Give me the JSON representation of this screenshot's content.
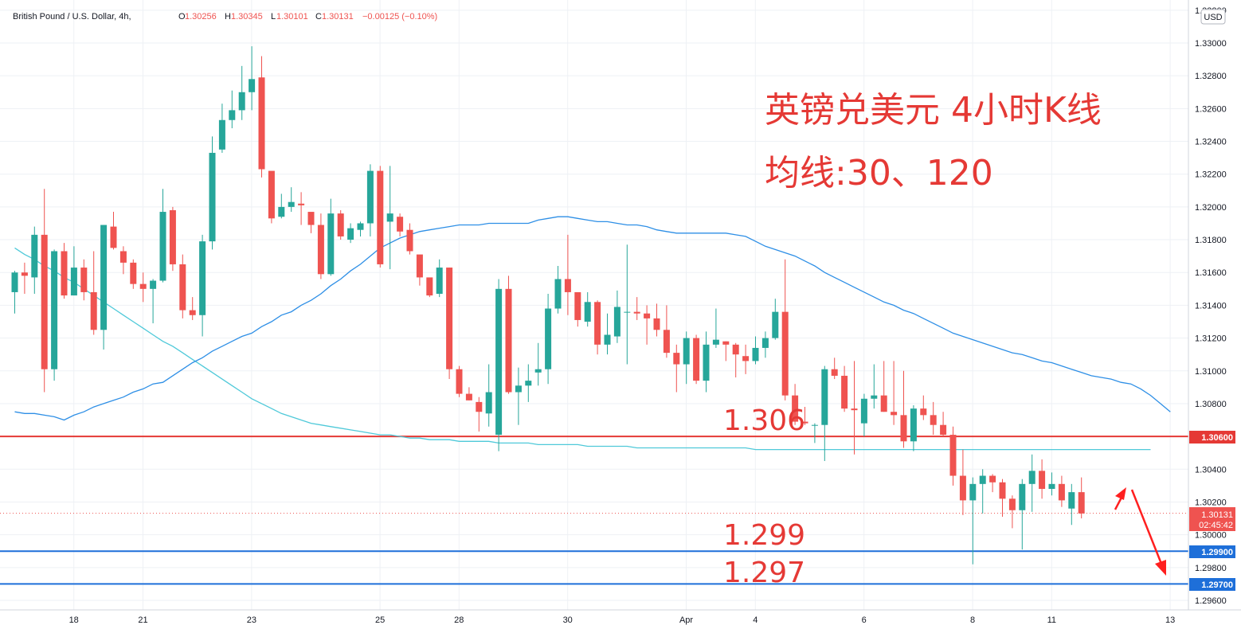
{
  "header": {
    "symbol_label": "British Pound / U.S. Dollar, 4h,",
    "open_label": "O",
    "open_value": "1.30256",
    "high_label": "H",
    "high_value": "1.30345",
    "low_label": "L",
    "low_value": "1.30101",
    "close_label": "C",
    "close_value": "1.30131",
    "change_value": "−0.00125 (−0.10%)"
  },
  "currency_button": "USD",
  "annotations": {
    "title_line1": "英镑兑美元 4小时K线",
    "title_line2": "均线:30、120",
    "level_1306": "1.306",
    "level_1299": "1.299",
    "level_1297": "1.297"
  },
  "price_tags": {
    "resistance": "1.30600",
    "current_price": "1.30131",
    "countdown": "02:45:42",
    "support_1": "1.29900",
    "support_2": "1.29700"
  },
  "colors": {
    "bullish": "#26a69a",
    "bearish": "#ef5350",
    "ma30": "#2e8fe6",
    "ma120": "#4fc9d9",
    "resistance_line": "#e53935",
    "support_line": "#1e6fd9",
    "annotation_text": "#e53935",
    "grid": "#eef1f5"
  },
  "chart_data": {
    "type": "candlestick",
    "title": "英镑兑美元 4小时K线",
    "subtitle": "均线:30、120",
    "symbol": "British Pound / U.S. Dollar",
    "timeframe": "4h",
    "y_ticks": [
      "1.33200",
      "1.33000",
      "1.32800",
      "1.32600",
      "1.32400",
      "1.32200",
      "1.32000",
      "1.31800",
      "1.31600",
      "1.31400",
      "1.31200",
      "1.31000",
      "1.30800",
      "1.30600",
      "1.30400",
      "1.30200",
      "1.30000",
      "1.29800",
      "1.29600"
    ],
    "y_tick_values": [
      1.332,
      1.33,
      1.328,
      1.326,
      1.324,
      1.322,
      1.32,
      1.318,
      1.316,
      1.314,
      1.312,
      1.31,
      1.308,
      1.306,
      1.304,
      1.302,
      1.3,
      1.298,
      1.296
    ],
    "ylim": [
      1.2952,
      1.3322
    ],
    "x_ticks": [
      "18",
      "21",
      "23",
      "25",
      "28",
      "30",
      "Apr",
      "4",
      "6",
      "8",
      "11",
      "13"
    ],
    "x_tick_bars": [
      5.5,
      12.5,
      23.5,
      36.5,
      44.5,
      55.5,
      67.5,
      74.5,
      85.5,
      96.5,
      104.5,
      116.5
    ],
    "candles": [
      [
        1.3148,
        1.3161,
        1.3135,
        1.316
      ],
      [
        1.316,
        1.3166,
        1.3147,
        1.3158
      ],
      [
        1.3157,
        1.3188,
        1.3147,
        1.3183
      ],
      [
        1.3183,
        1.3211,
        1.3087,
        1.3101
      ],
      [
        1.3101,
        1.3174,
        1.3094,
        1.3173
      ],
      [
        1.3173,
        1.3178,
        1.3144,
        1.3146
      ],
      [
        1.3146,
        1.3176,
        1.3146,
        1.3163
      ],
      [
        1.3163,
        1.3168,
        1.3143,
        1.3148
      ],
      [
        1.3148,
        1.3173,
        1.3122,
        1.3125
      ],
      [
        1.3125,
        1.3189,
        1.3113,
        1.3189
      ],
      [
        1.3188,
        1.3197,
        1.3174,
        1.3175
      ],
      [
        1.3173,
        1.3176,
        1.3159,
        1.3166
      ],
      [
        1.3166,
        1.3168,
        1.315,
        1.3153
      ],
      [
        1.3153,
        1.316,
        1.3142,
        1.315
      ],
      [
        1.315,
        1.3156,
        1.3129,
        1.3155
      ],
      [
        1.3155,
        1.3211,
        1.3154,
        1.3197
      ],
      [
        1.3198,
        1.32,
        1.3161,
        1.3165
      ],
      [
        1.3165,
        1.3171,
        1.3132,
        1.3137
      ],
      [
        1.3137,
        1.3145,
        1.3131,
        1.3134
      ],
      [
        1.3134,
        1.3183,
        1.3121,
        1.3179
      ],
      [
        1.3179,
        1.3243,
        1.3174,
        1.3233
      ],
      [
        1.3235,
        1.3263,
        1.3233,
        1.3253
      ],
      [
        1.3253,
        1.3271,
        1.3248,
        1.3259
      ],
      [
        1.3259,
        1.3286,
        1.3253,
        1.327
      ],
      [
        1.327,
        1.3298,
        1.3259,
        1.3278
      ],
      [
        1.3279,
        1.3292,
        1.3218,
        1.3223
      ],
      [
        1.3222,
        1.3221,
        1.319,
        1.3193
      ],
      [
        1.3194,
        1.3208,
        1.3193,
        1.32
      ],
      [
        1.32,
        1.3212,
        1.3197,
        1.3203
      ],
      [
        1.3202,
        1.3209,
        1.3189,
        1.3201
      ],
      [
        1.3197,
        1.3194,
        1.3184,
        1.3189
      ],
      [
        1.3189,
        1.3196,
        1.3156,
        1.3159
      ],
      [
        1.3159,
        1.3205,
        1.3158,
        1.3196
      ],
      [
        1.3196,
        1.3198,
        1.318,
        1.3182
      ],
      [
        1.318,
        1.319,
        1.3178,
        1.3187
      ],
      [
        1.3186,
        1.3191,
        1.3182,
        1.319
      ],
      [
        1.319,
        1.3226,
        1.3182,
        1.3222
      ],
      [
        1.3222,
        1.3225,
        1.3163,
        1.3165
      ],
      [
        1.3191,
        1.3225,
        1.3162,
        1.3196
      ],
      [
        1.3194,
        1.3196,
        1.3182,
        1.3185
      ],
      [
        1.3186,
        1.319,
        1.3171,
        1.3173
      ],
      [
        1.3171,
        1.317,
        1.3152,
        1.3157
      ],
      [
        1.3157,
        1.3154,
        1.3145,
        1.3146
      ],
      [
        1.3147,
        1.3168,
        1.3145,
        1.3163
      ],
      [
        1.3163,
        1.3163,
        1.3095,
        1.3101
      ],
      [
        1.3101,
        1.3103,
        1.3084,
        1.3086
      ],
      [
        1.3086,
        1.309,
        1.3082,
        1.3082
      ],
      [
        1.3081,
        1.3084,
        1.3063,
        1.3075
      ],
      [
        1.3074,
        1.3104,
        1.3066,
        1.3087
      ],
      [
        1.3061,
        1.3156,
        1.3051,
        1.315
      ],
      [
        1.315,
        1.3158,
        1.3086,
        1.3087
      ],
      [
        1.3087,
        1.3102,
        1.3067,
        1.3091
      ],
      [
        1.3091,
        1.3104,
        1.3081,
        1.3094
      ],
      [
        1.3099,
        1.3117,
        1.3091,
        1.3101
      ],
      [
        1.3101,
        1.3147,
        1.3092,
        1.3138
      ],
      [
        1.3138,
        1.3164,
        1.3135,
        1.3156
      ],
      [
        1.3156,
        1.3183,
        1.3134,
        1.3148
      ],
      [
        1.3148,
        1.3147,
        1.3127,
        1.3131
      ],
      [
        1.313,
        1.3148,
        1.3127,
        1.3142
      ],
      [
        1.3142,
        1.3143,
        1.311,
        1.3116
      ],
      [
        1.3116,
        1.3135,
        1.311,
        1.3122
      ],
      [
        1.3121,
        1.3149,
        1.3117,
        1.3139
      ],
      [
        1.3136,
        1.3177,
        1.3104,
        1.3136
      ],
      [
        1.3136,
        1.3145,
        1.3131,
        1.3135
      ],
      [
        1.3135,
        1.314,
        1.3116,
        1.3132
      ],
      [
        1.3132,
        1.3141,
        1.3121,
        1.3125
      ],
      [
        1.3125,
        1.314,
        1.3108,
        1.3111
      ],
      [
        1.3111,
        1.3116,
        1.3087,
        1.3104
      ],
      [
        1.3104,
        1.3124,
        1.3092,
        1.312
      ],
      [
        1.312,
        1.3122,
        1.3092,
        1.3094
      ],
      [
        1.3094,
        1.3124,
        1.3087,
        1.3116
      ],
      [
        1.3116,
        1.3138,
        1.3114,
        1.3119
      ],
      [
        1.3118,
        1.3118,
        1.3106,
        1.3116
      ],
      [
        1.3116,
        1.3117,
        1.3096,
        1.311
      ],
      [
        1.3109,
        1.3116,
        1.3098,
        1.3106
      ],
      [
        1.3106,
        1.3121,
        1.3104,
        1.3114
      ],
      [
        1.3114,
        1.3124,
        1.3108,
        1.312
      ],
      [
        1.312,
        1.3144,
        1.3119,
        1.3136
      ],
      [
        1.3136,
        1.3168,
        1.3082,
        1.3085
      ],
      [
        1.3085,
        1.3092,
        1.3067,
        1.3069
      ],
      [
        1.3069,
        1.3078,
        1.3067,
        1.3068
      ],
      [
        1.3067,
        1.3068,
        1.3056,
        1.3067
      ],
      [
        1.3067,
        1.3103,
        1.3045,
        1.3101
      ],
      [
        1.3101,
        1.3108,
        1.3095,
        1.3097
      ],
      [
        1.3097,
        1.3103,
        1.3075,
        1.3077
      ],
      [
        1.3077,
        1.3106,
        1.3049,
        1.3076
      ],
      [
        1.3068,
        1.3086,
        1.306,
        1.3083
      ],
      [
        1.3083,
        1.3104,
        1.3077,
        1.3085
      ],
      [
        1.3085,
        1.3106,
        1.3075,
        1.3075
      ],
      [
        1.3075,
        1.3106,
        1.3067,
        1.3073
      ],
      [
        1.3073,
        1.31,
        1.3053,
        1.3057
      ],
      [
        1.3057,
        1.3079,
        1.3051,
        1.3077
      ],
      [
        1.3077,
        1.3085,
        1.307,
        1.3073
      ],
      [
        1.3073,
        1.3081,
        1.3061,
        1.3067
      ],
      [
        1.3067,
        1.3075,
        1.306,
        1.3061
      ],
      [
        1.3061,
        1.3066,
        1.303,
        1.3036
      ],
      [
        1.3036,
        1.3052,
        1.3012,
        1.3021
      ],
      [
        1.3021,
        1.3035,
        1.2982,
        1.3031
      ],
      [
        1.3031,
        1.304,
        1.3013,
        1.3036
      ],
      [
        1.3036,
        1.3037,
        1.3026,
        1.3032
      ],
      [
        1.3032,
        1.3034,
        1.3011,
        1.3022
      ],
      [
        1.3022,
        1.3024,
        1.3004,
        1.3015
      ],
      [
        1.3015,
        1.3034,
        1.2991,
        1.3031
      ],
      [
        1.3031,
        1.3049,
        1.3014,
        1.3039
      ],
      [
        1.3039,
        1.3046,
        1.3022,
        1.3028
      ],
      [
        1.3028,
        1.3038,
        1.3024,
        1.3031
      ],
      [
        1.3031,
        1.3036,
        1.3017,
        1.3021
      ],
      [
        1.3016,
        1.3031,
        1.3006,
        1.3026
      ],
      [
        1.3026,
        1.3035,
        1.301,
        1.3013
      ]
    ],
    "ma30": [
      1.3075,
      1.3074,
      1.3074,
      1.3073,
      1.3072,
      1.307,
      1.3073,
      1.3075,
      1.3078,
      1.308,
      1.3082,
      1.3084,
      1.3087,
      1.3089,
      1.3092,
      1.3093,
      1.3097,
      1.3101,
      1.3105,
      1.3108,
      1.3112,
      1.3115,
      1.3118,
      1.3121,
      1.3123,
      1.3127,
      1.313,
      1.3134,
      1.3136,
      1.314,
      1.3143,
      1.3147,
      1.3152,
      1.3156,
      1.3161,
      1.3165,
      1.317,
      1.3175,
      1.3178,
      1.3181,
      1.3183,
      1.3185,
      1.3186,
      1.3187,
      1.3188,
      1.3189,
      1.3189,
      1.3189,
      1.319,
      1.319,
      1.319,
      1.319,
      1.319,
      1.3192,
      1.3193,
      1.3194,
      1.3194,
      1.3193,
      1.3192,
      1.3191,
      1.3191,
      1.319,
      1.3189,
      1.3189,
      1.3188,
      1.3186,
      1.3185,
      1.3184,
      1.3184,
      1.3184,
      1.3184,
      1.3184,
      1.3184,
      1.3183,
      1.3182,
      1.3179,
      1.3176,
      1.3174,
      1.3172,
      1.317,
      1.3167,
      1.3164,
      1.316,
      1.3157,
      1.3154,
      1.3151,
      1.3148,
      1.3145,
      1.3142,
      1.314,
      1.3137,
      1.3135,
      1.3132,
      1.3129,
      1.3126,
      1.3123,
      1.3121,
      1.3119,
      1.3117,
      1.3115,
      1.3113,
      1.3111,
      1.311,
      1.3108,
      1.3106,
      1.3105,
      1.3103,
      1.3101,
      1.3099,
      1.3097,
      1.3096,
      1.3095,
      1.3093,
      1.3092,
      1.3089,
      1.3085,
      1.308,
      1.3075
    ],
    "ma120": [
      1.3175,
      1.3171,
      1.3168,
      1.3164,
      1.3161,
      1.3157,
      1.3154,
      1.315,
      1.3146,
      1.3142,
      1.3138,
      1.3134,
      1.313,
      1.3126,
      1.3122,
      1.3118,
      1.3115,
      1.3111,
      1.3107,
      1.3103,
      1.3099,
      1.3095,
      1.3091,
      1.3087,
      1.3083,
      1.308,
      1.3077,
      1.3074,
      1.3072,
      1.307,
      1.3068,
      1.3067,
      1.3066,
      1.3065,
      1.3064,
      1.3063,
      1.3062,
      1.3061,
      1.3061,
      1.306,
      1.3059,
      1.3059,
      1.3058,
      1.3058,
      1.3058,
      1.3057,
      1.3057,
      1.3057,
      1.3057,
      1.3056,
      1.3056,
      1.3056,
      1.3056,
      1.3055,
      1.3055,
      1.3055,
      1.3055,
      1.3055,
      1.3054,
      1.3054,
      1.3054,
      1.3054,
      1.3054,
      1.3053,
      1.3053,
      1.3053,
      1.3053,
      1.3053,
      1.3053,
      1.3053,
      1.3053,
      1.3053,
      1.3053,
      1.3053,
      1.3053,
      1.3052,
      1.3052,
      1.3052,
      1.3052,
      1.3052,
      1.3052,
      1.3052,
      1.3052,
      1.3052,
      1.3052,
      1.3052,
      1.3052,
      1.3052,
      1.3052,
      1.3052,
      1.3052,
      1.3052,
      1.3052,
      1.3052,
      1.3052,
      1.3052,
      1.3052,
      1.3052,
      1.3052,
      1.3052,
      1.3052,
      1.3052,
      1.3052,
      1.3052,
      1.3052,
      1.3052,
      1.3052,
      1.3052,
      1.3052,
      1.3052,
      1.3052,
      1.3052,
      1.3052,
      1.3052,
      1.3052,
      1.3052
    ],
    "horizontal_levels": [
      {
        "value": 1.306,
        "label": "1.306",
        "color": "#e53935"
      },
      {
        "value": 1.299,
        "label": "1.299",
        "color": "#1e6fd9"
      },
      {
        "value": 1.297,
        "label": "1.297",
        "color": "#1e6fd9"
      }
    ],
    "current_price": 1.30131,
    "grid": true,
    "legend": "none"
  }
}
